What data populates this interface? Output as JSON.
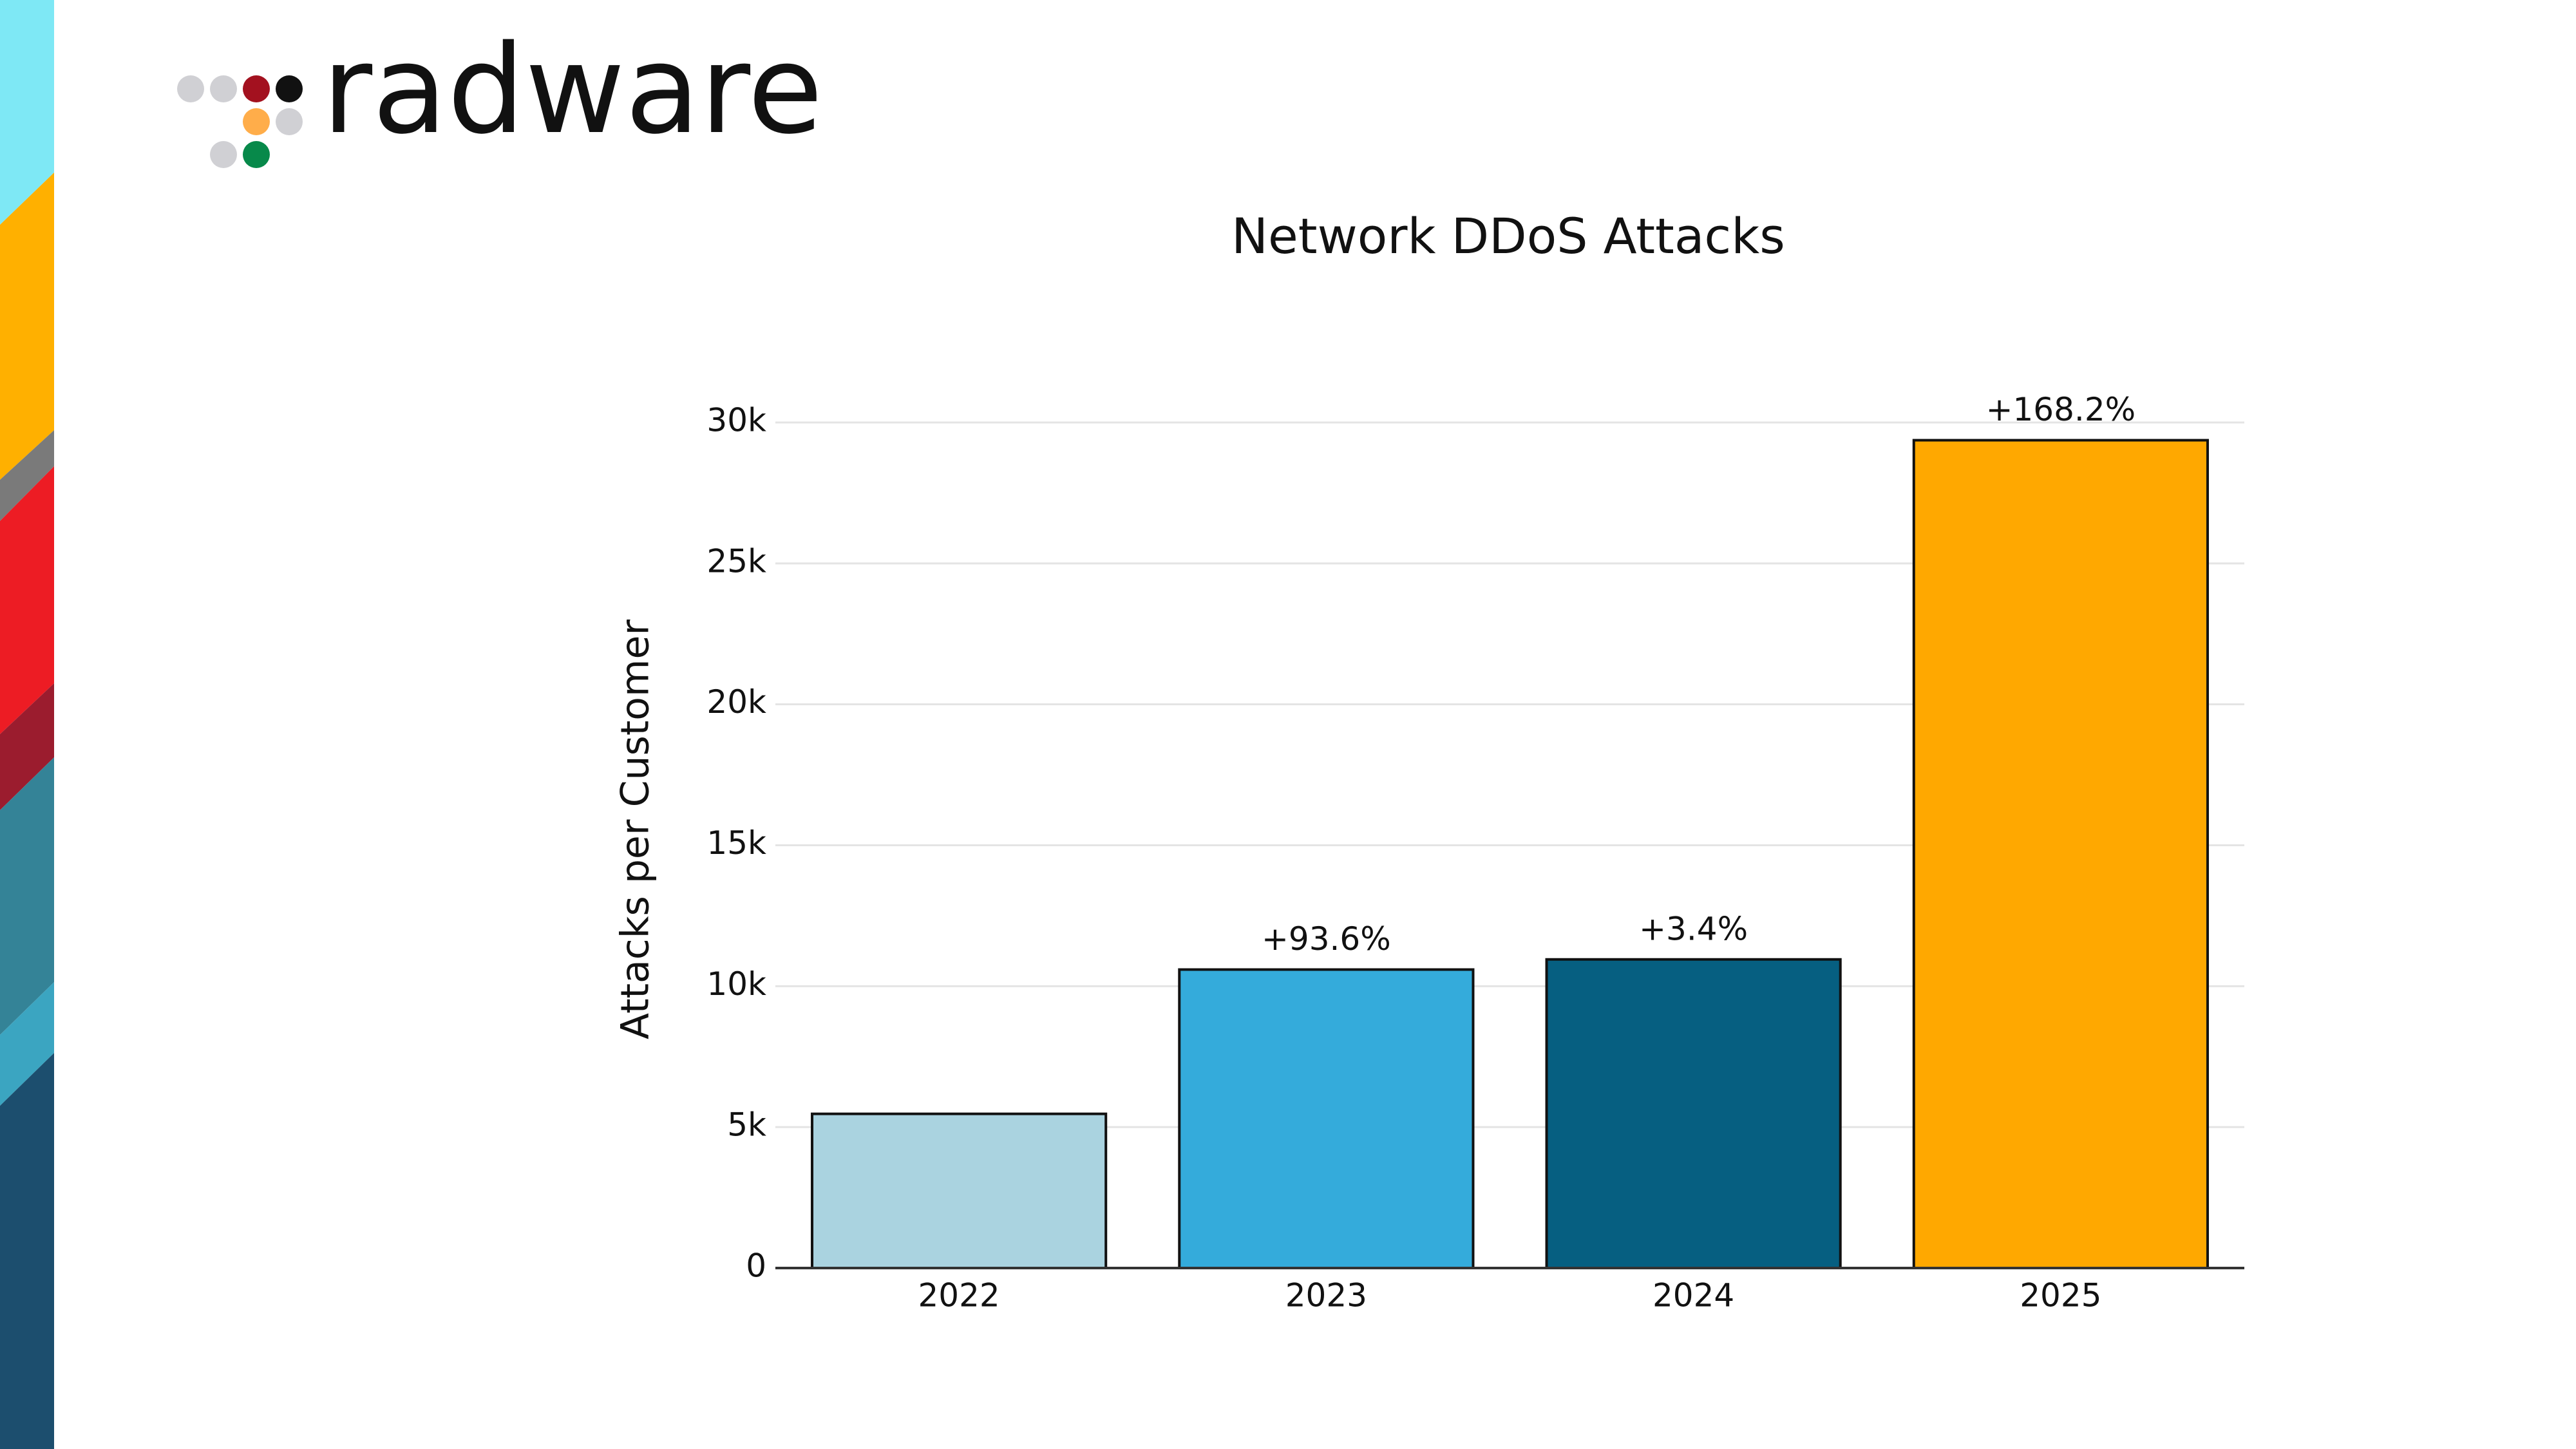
{
  "logo": "radware",
  "chart_data": {
    "type": "bar",
    "title": "Network DDoS Attacks",
    "y_label": "Attacks per Customer",
    "categories": [
      "2022",
      "2023",
      "2024",
      "2025"
    ],
    "values": [
      5470,
      10590,
      10950,
      29370
    ],
    "growth_labels": [
      null,
      "+93.6%",
      "+3.4%",
      "+168.2%"
    ],
    "colors": [
      "#aad3e0",
      "#34abdb",
      "#065f81",
      "#ffa800"
    ],
    "ylim": [
      0,
      30000
    ],
    "yticks": [
      0,
      {
        "value": 5000,
        "label": "5k"
      },
      {
        "value": 10000,
        "label": "10k"
      },
      {
        "value": 15000,
        "label": "15k"
      },
      {
        "value": 20000,
        "label": "20k"
      },
      {
        "value": 25000,
        "label": "25k"
      },
      {
        "value": 30000,
        "label": "30k"
      }
    ],
    "grid": true
  }
}
